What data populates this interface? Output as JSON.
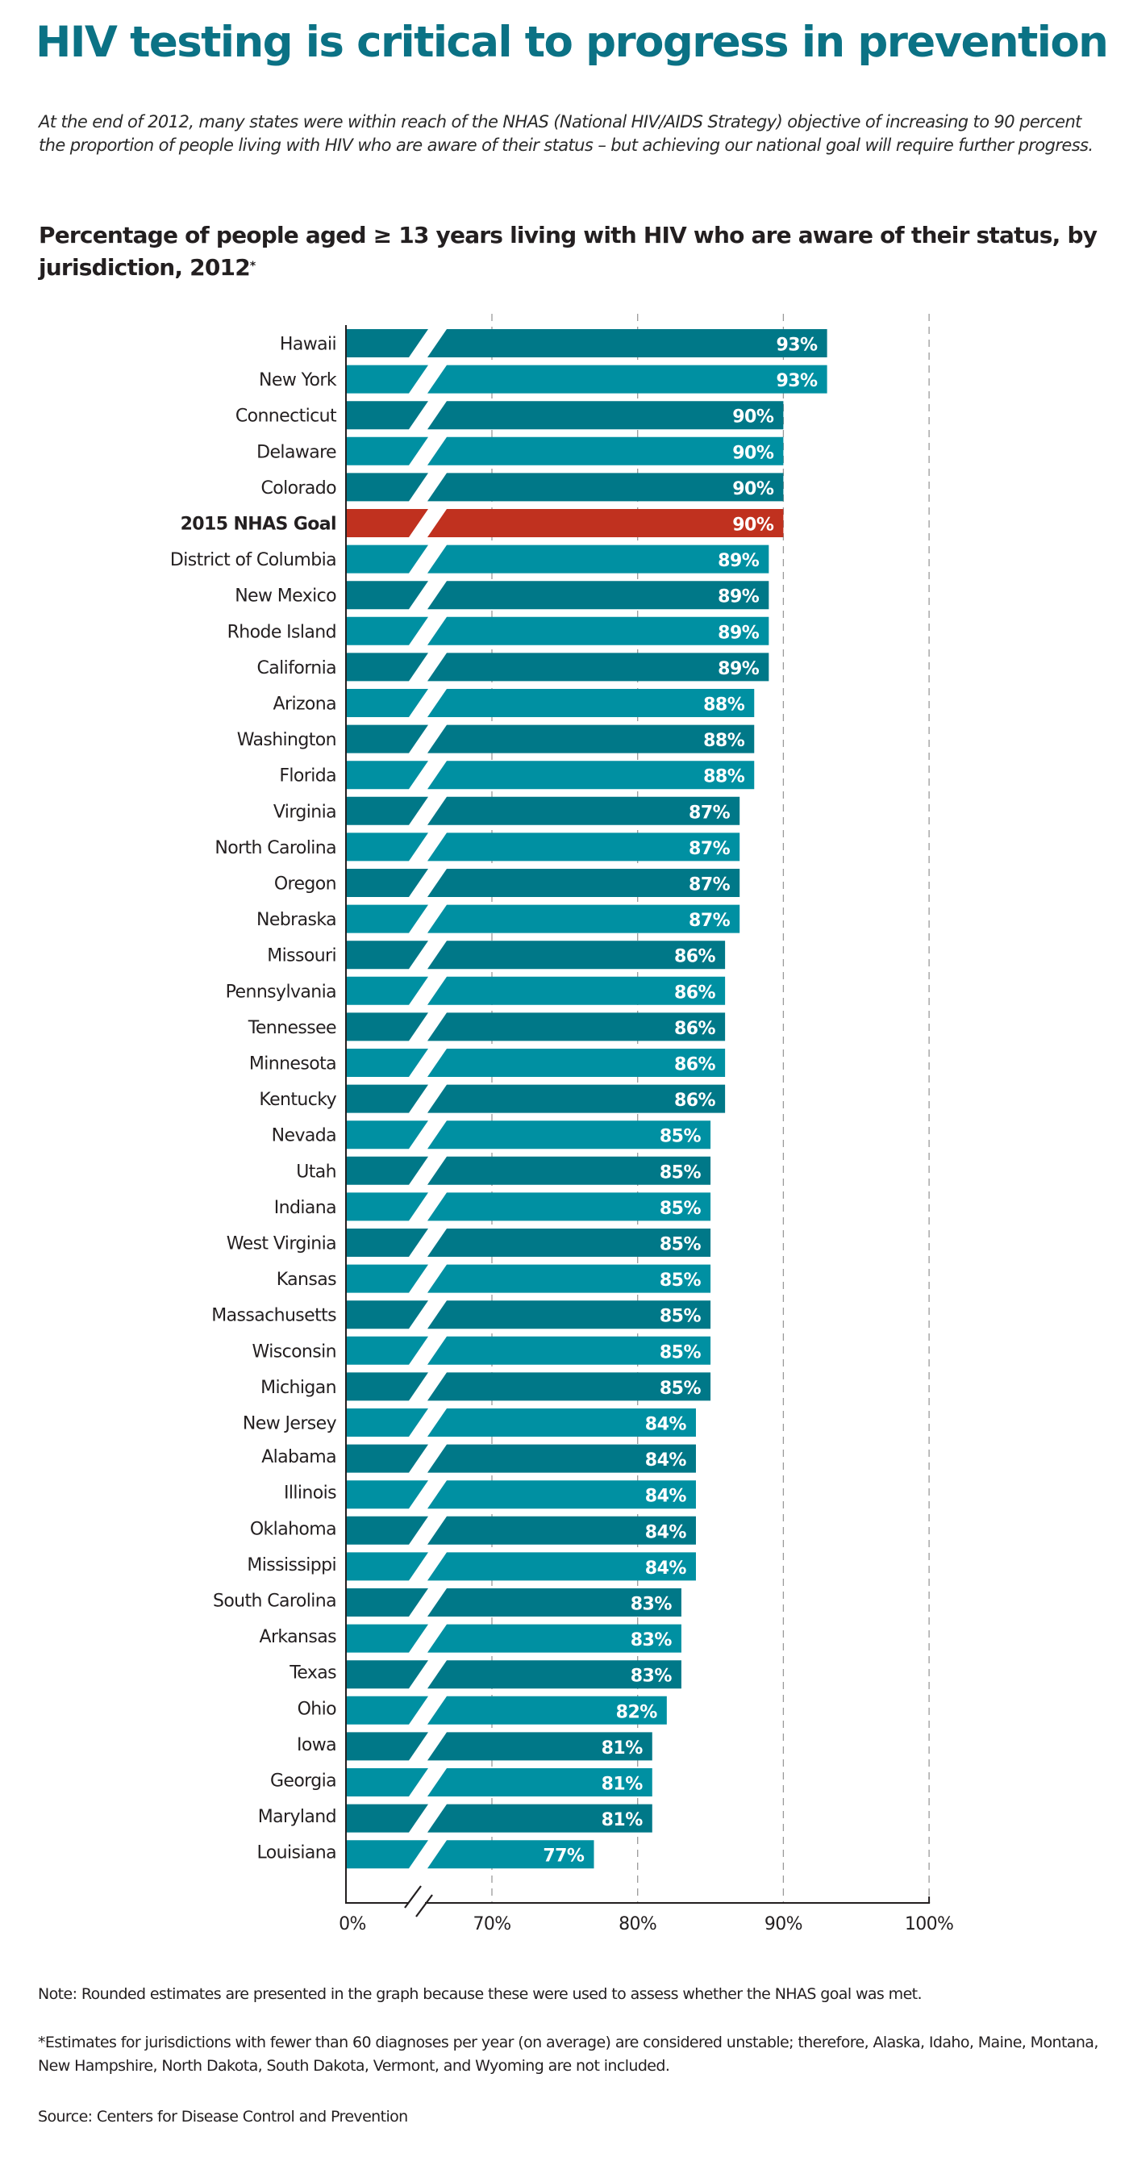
{
  "header": {
    "title": "HIV testing is critical to progress in prevention",
    "intro": "At the end of 2012, many states were within reach of the NHAS (National HIV/AIDS Strategy) objective of increasing to 90 percent the proportion of people living with HIV who are aware of their status – but achieving our national goal will require further progress.",
    "chart_title": "Percentage of people aged ≥ 13 years living with HIV who are aware of their status, by jurisdiction, 2012",
    "chart_title_marker": "*"
  },
  "colors": {
    "title": "#0b7285",
    "bar_dark": "#007888",
    "bar_light": "#0090a2",
    "bar_goal": "#c0311f",
    "value_label": "#ffffff",
    "gridline": "#9a9a9a",
    "axis": "#231f20"
  },
  "chart_data": {
    "type": "bar",
    "orientation": "horizontal",
    "title": "Percentage of people aged ≥ 13 years living with HIV who are aware of their status, by jurisdiction, 2012*",
    "xlabel": "",
    "ylabel": "",
    "xlim": [
      0,
      100
    ],
    "axis_break": [
      0,
      70
    ],
    "x_ticks": [
      "0%",
      "70%",
      "80%",
      "90%",
      "100%"
    ],
    "x_tick_values": [
      0,
      70,
      80,
      90,
      100
    ],
    "grid": "vertical dashed at 70, 80, 90, 100",
    "highlight": "2015 NHAS Goal",
    "categories": [
      "Hawaii",
      "New York",
      "Connecticut",
      "Delaware",
      "Colorado",
      "2015 NHAS Goal",
      "District of Columbia",
      "New Mexico",
      "Rhode Island",
      "California",
      "Arizona",
      "Washington",
      "Florida",
      "Virginia",
      "North Carolina",
      "Oregon",
      "Nebraska",
      "Missouri",
      "Pennsylvania",
      "Tennessee",
      "Minnesota",
      "Kentucky",
      "Nevada",
      "Utah",
      "Indiana",
      "West Virginia",
      "Kansas",
      "Massachusetts",
      "Wisconsin",
      "Michigan",
      "New Jersey",
      "Alabama",
      "Illinois",
      "Oklahoma",
      "Mississippi",
      "South Carolina",
      "Arkansas",
      "Texas",
      "Ohio",
      "Iowa",
      "Georgia",
      "Maryland",
      "Louisiana"
    ],
    "values": [
      93,
      93,
      90,
      90,
      90,
      90,
      89,
      89,
      89,
      89,
      88,
      88,
      88,
      87,
      87,
      87,
      87,
      86,
      86,
      86,
      86,
      86,
      85,
      85,
      85,
      85,
      85,
      85,
      85,
      85,
      84,
      84,
      84,
      84,
      84,
      83,
      83,
      83,
      82,
      81,
      81,
      81,
      77
    ],
    "value_labels": [
      "93%",
      "93%",
      "90%",
      "90%",
      "90%",
      "90%",
      "89%",
      "89%",
      "89%",
      "89%",
      "88%",
      "88%",
      "88%",
      "87%",
      "87%",
      "87%",
      "87%",
      "86%",
      "86%",
      "86%",
      "86%",
      "86%",
      "85%",
      "85%",
      "85%",
      "85%",
      "85%",
      "85%",
      "85%",
      "85%",
      "84%",
      "84%",
      "84%",
      "84%",
      "84%",
      "83%",
      "83%",
      "83%",
      "82%",
      "81%",
      "81%",
      "81%",
      "77%"
    ]
  },
  "footer": {
    "note": "Note: Rounded estimates are presented in the graph because these were used to assess whether the NHAS goal was met.",
    "footnote": "*Estimates for jurisdictions with fewer than 60 diagnoses per year (on average) are considered unstable; therefore, Alaska, Idaho, Maine, Montana, New Hampshire, North Dakota, South Dakota, Vermont, and Wyoming are not included.",
    "source": "Source: Centers for Disease Control and Prevention"
  }
}
